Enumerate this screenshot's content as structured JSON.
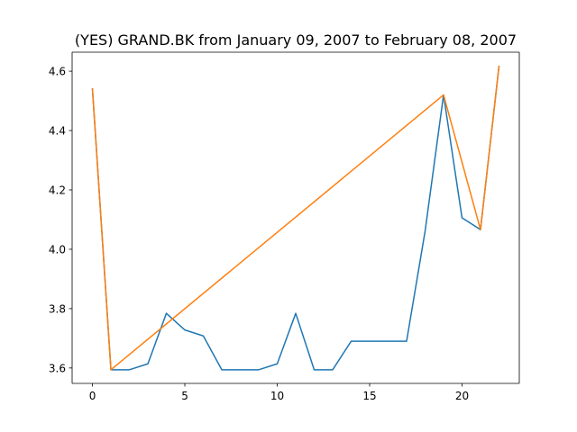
{
  "chart_data": {
    "type": "line",
    "title": "(YES) GRAND.BK from January 09, 2007 to February 08, 2007",
    "xlabel": "",
    "ylabel": "",
    "xlim": [
      -1.1,
      23.1
    ],
    "ylim": [
      3.548,
      4.664
    ],
    "xticks": [
      0,
      5,
      10,
      15,
      20
    ],
    "xtick_labels": [
      "0",
      "5",
      "10",
      "15",
      "20"
    ],
    "yticks": [
      3.6,
      3.8,
      4.0,
      4.2,
      4.4,
      4.6
    ],
    "ytick_labels": [
      "3.6",
      "3.8",
      "4.0",
      "4.2",
      "4.4",
      "4.6"
    ],
    "grid": false,
    "series": [
      {
        "color": "#1f77b4",
        "x": [
          0,
          1,
          2,
          3,
          4,
          5,
          6,
          7,
          8,
          9,
          10,
          11,
          12,
          13,
          14,
          15,
          16,
          17,
          18,
          19,
          20,
          21,
          22
        ],
        "y": [
          4.54,
          3.594,
          3.594,
          3.614,
          3.784,
          3.728,
          3.708,
          3.594,
          3.594,
          3.594,
          3.614,
          3.784,
          3.594,
          3.594,
          3.69,
          3.69,
          3.69,
          3.69,
          4.06,
          4.52,
          4.106,
          4.066,
          4.616
        ]
      },
      {
        "color": "#ff7f0e",
        "x": [
          0,
          1,
          19,
          21,
          22
        ],
        "y": [
          4.54,
          3.594,
          4.52,
          4.066,
          4.616
        ]
      }
    ]
  }
}
